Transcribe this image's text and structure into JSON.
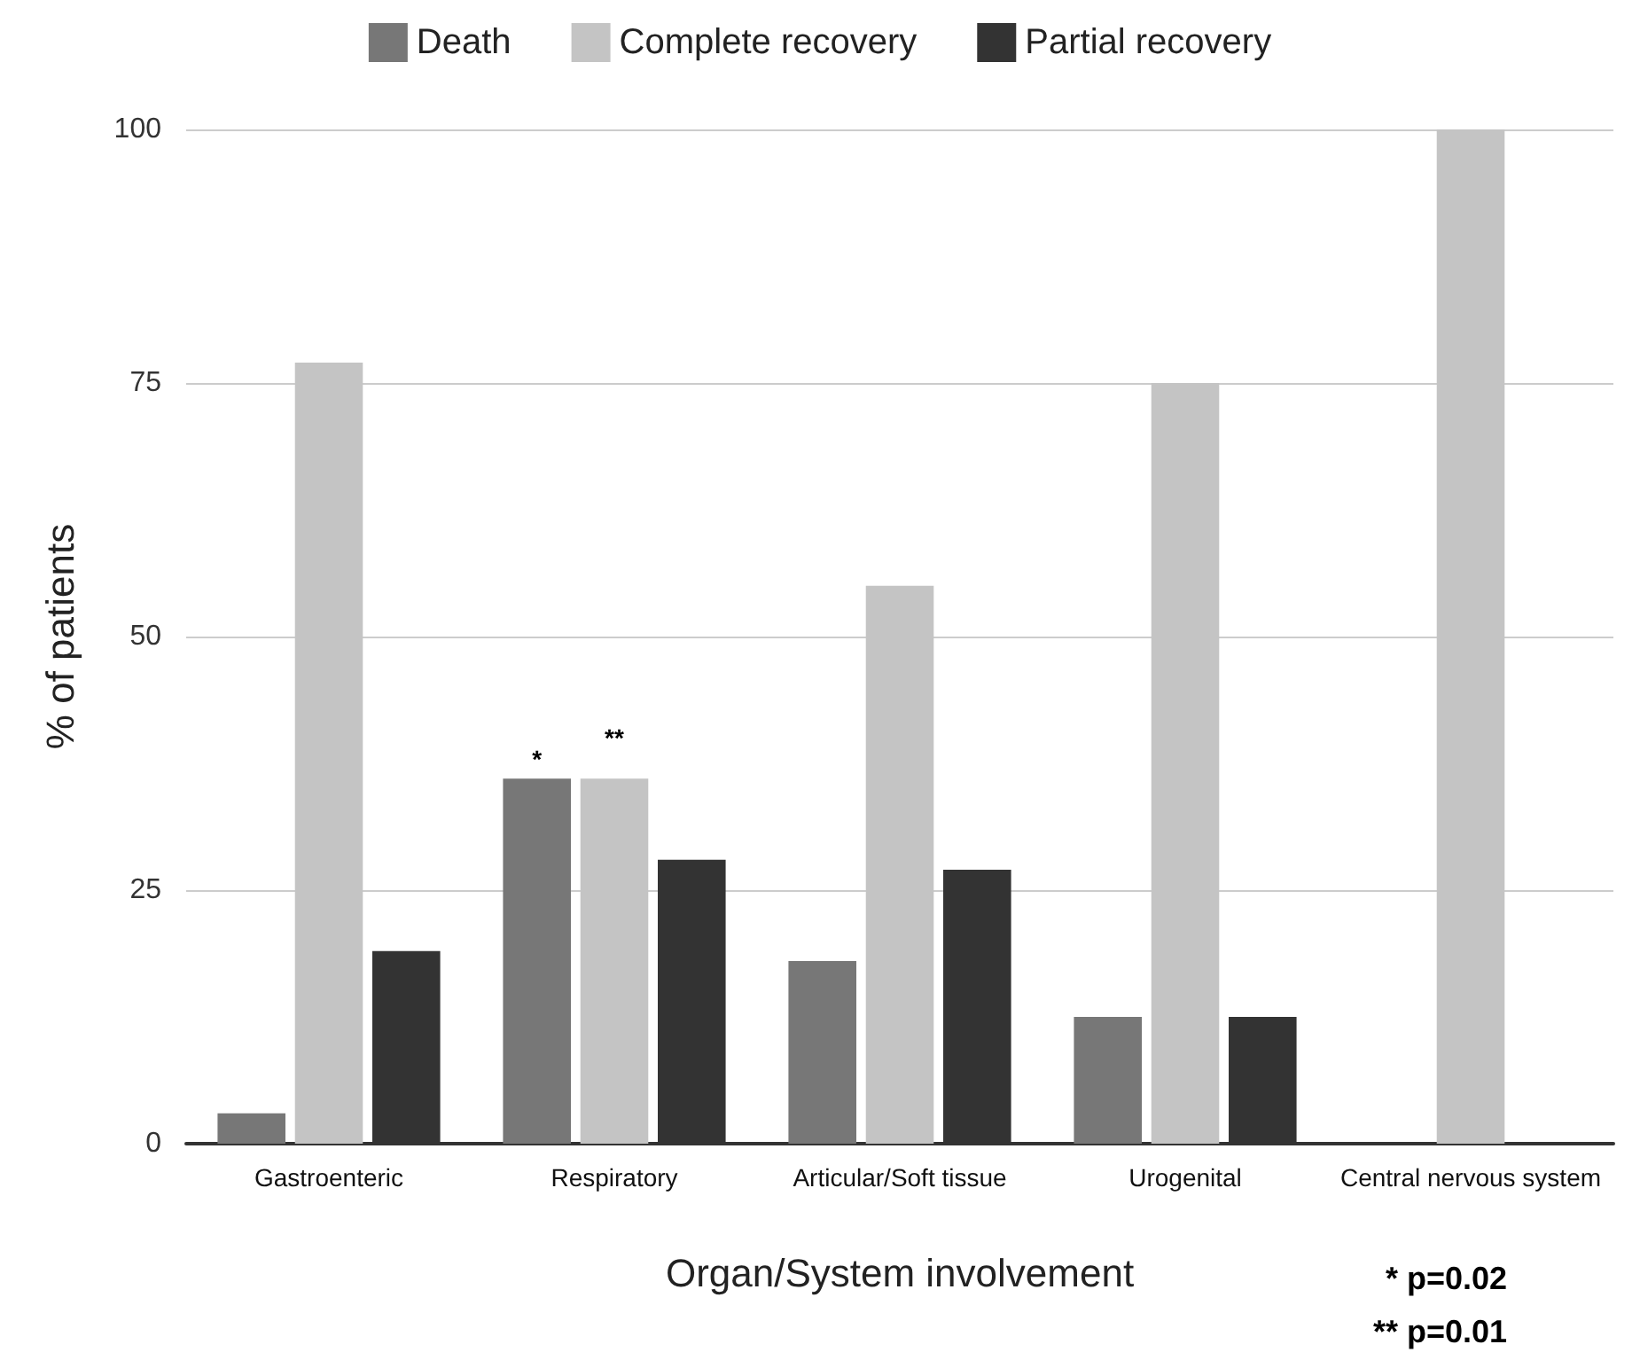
{
  "chart_data": {
    "type": "bar",
    "xlabel": "Organ/System involvement",
    "ylabel": "% of patients",
    "categories": [
      "Gastroenteric",
      "Respiratory",
      "Articular/Soft tissue",
      "Urogenital",
      "Central nervous system"
    ],
    "series": [
      {
        "name": "Death",
        "color": "#777777",
        "values": [
          3,
          36,
          18,
          12.5,
          0
        ]
      },
      {
        "name": "Complete recovery",
        "color": "#c4c4c4",
        "values": [
          77,
          36,
          55,
          75,
          100
        ]
      },
      {
        "name": "Partial recovery",
        "color": "#333333",
        "values": [
          19,
          28,
          27,
          12.5,
          0
        ]
      }
    ],
    "ylim": [
      0,
      100
    ],
    "yticks": [
      0,
      25,
      50,
      75,
      100
    ],
    "grid": "y",
    "legend": "top",
    "annotations": [
      {
        "text": "*",
        "x": "Respiratory",
        "y": 36
      },
      {
        "text": "**",
        "x": "Respiratory",
        "y": 36
      },
      "* p=0.02",
      "** p=0.01"
    ]
  }
}
